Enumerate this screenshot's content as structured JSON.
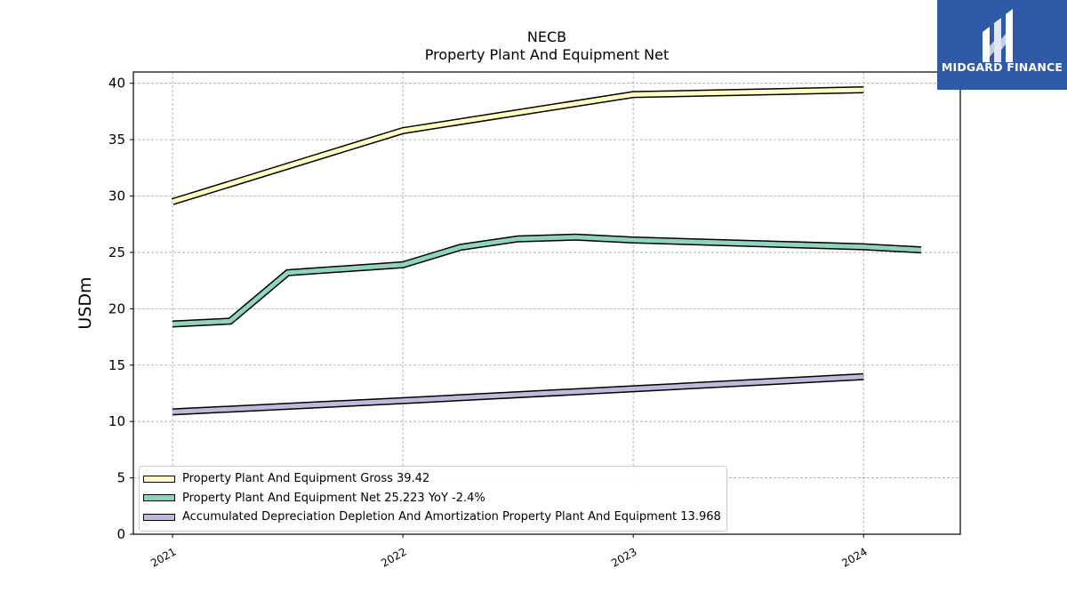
{
  "header": {
    "title": "NECB",
    "subtitle": "Property Plant And Equipment Net"
  },
  "logo": {
    "text": "MIDGARD FINANCE",
    "background": "#2e5aa8"
  },
  "chart_data": {
    "type": "line",
    "ylabel": "USDm",
    "ylim": [
      0,
      41
    ],
    "xlim": [
      2020.83,
      2024.42
    ],
    "yticks": [
      0,
      5,
      10,
      15,
      20,
      25,
      30,
      35,
      40
    ],
    "xticks": [
      {
        "value": 2021,
        "label": "2021"
      },
      {
        "value": 2022,
        "label": "2022"
      },
      {
        "value": 2023,
        "label": "2023"
      },
      {
        "value": 2024,
        "label": "2024"
      }
    ],
    "grid": true,
    "legend_position": "lower-left",
    "series": [
      {
        "name": "Property Plant And Equipment Gross  39.42",
        "color": "#ffffbf",
        "x": [
          2021.0,
          2022.0,
          2023.0,
          2024.0
        ],
        "y": [
          29.5,
          35.8,
          39.0,
          39.42
        ]
      },
      {
        "name": "Property Plant And Equipment Net  25.223 YoY -2.4%",
        "color": "#8fd3c2",
        "x": [
          2021.0,
          2021.25,
          2021.5,
          2022.0,
          2022.25,
          2022.5,
          2022.75,
          2023.0,
          2024.0,
          2024.25
        ],
        "y": [
          18.65,
          18.9,
          23.2,
          23.9,
          25.45,
          26.2,
          26.35,
          26.1,
          25.5,
          25.223
        ]
      },
      {
        "name": "Accumulated Depreciation Depletion And Amortization Property Plant And Equipment  13.968",
        "color": "#bfbad9",
        "x": [
          2021.0,
          2022.0,
          2023.0,
          2024.0
        ],
        "y": [
          10.85,
          11.85,
          12.9,
          13.968
        ]
      }
    ]
  }
}
